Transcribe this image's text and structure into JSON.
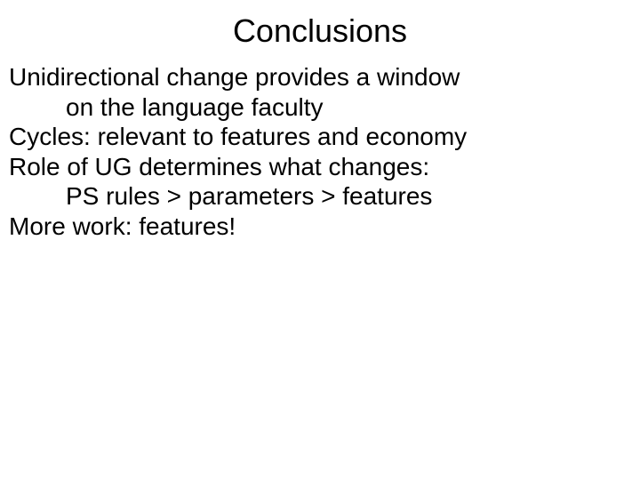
{
  "slide": {
    "title": "Conclusions",
    "lines": [
      {
        "text": "Unidirectional change provides a window",
        "indent": false
      },
      {
        "text": "on the language faculty",
        "indent": true
      },
      {
        "text": "Cycles: relevant to features and economy",
        "indent": false
      },
      {
        "text": "Role of UG determines what changes:",
        "indent": false
      },
      {
        "text": "PS rules > parameters > features",
        "indent": true
      },
      {
        "text": "More work: features!",
        "indent": false
      }
    ]
  },
  "styles": {
    "title_fontsize": 36,
    "body_fontsize": 28,
    "background_color": "#ffffff",
    "text_color": "#000000"
  }
}
